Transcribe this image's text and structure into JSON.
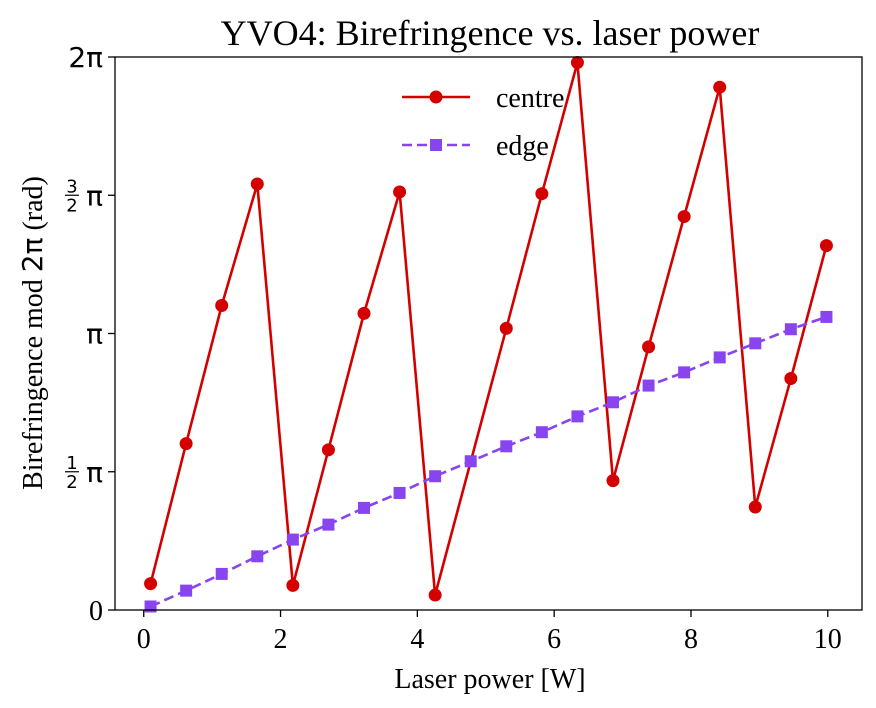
{
  "chart_data": {
    "type": "line",
    "title": "YVO4: Birefringence vs. laser power",
    "xlabel": "Laser power [W]",
    "ylabel_text": "Birefringence mod ",
    "ylabel_math": "2π",
    "ylabel_unit": " (rad)",
    "xlim": [
      -0.42,
      10.5
    ],
    "ylim": [
      0,
      6.2832
    ],
    "xticks": [
      0,
      2,
      4,
      6,
      8,
      10
    ],
    "xtick_labels": [
      "0",
      "2",
      "4",
      "6",
      "8",
      "10"
    ],
    "yticks": [
      {
        "value": 0,
        "label": "0"
      },
      {
        "value": 1.5708,
        "label": "π",
        "frac": "1/2"
      },
      {
        "value": 3.1416,
        "label": "π"
      },
      {
        "value": 4.7124,
        "label": "π",
        "frac": "3/2"
      },
      {
        "value": 6.2832,
        "label": "2π"
      }
    ],
    "legend_position": "top-center",
    "grid": false,
    "series": [
      {
        "name": "centre",
        "color": "#d40000",
        "linestyle": "solid",
        "marker": "circle",
        "x": [
          0.1,
          0.62,
          1.14,
          1.66,
          2.18,
          2.7,
          3.22,
          3.74,
          4.26,
          4.78,
          5.3,
          5.82,
          6.34,
          6.86,
          7.38,
          7.9,
          8.42,
          8.94,
          9.46,
          9.98
        ],
        "y": [
          0.3,
          1.89,
          3.46,
          4.84,
          0.28,
          1.82,
          3.37,
          4.75,
          0.17,
          null,
          3.2,
          4.73,
          6.22,
          1.47,
          2.99,
          4.47,
          5.94,
          1.17,
          2.63,
          4.14
        ]
      },
      {
        "name": "edge",
        "color": "#8844ee",
        "linestyle": "dashed",
        "marker": "square",
        "x": [
          0.1,
          0.62,
          1.14,
          1.66,
          2.18,
          2.7,
          3.22,
          3.74,
          4.26,
          4.78,
          5.3,
          5.82,
          6.34,
          6.86,
          7.38,
          7.9,
          8.42,
          8.94,
          9.46,
          9.98
        ],
        "y": [
          0.04,
          0.22,
          0.41,
          0.61,
          0.8,
          0.97,
          1.16,
          1.33,
          1.52,
          1.69,
          1.86,
          2.02,
          2.2,
          2.36,
          2.55,
          2.7,
          2.87,
          3.03,
          3.19,
          3.33
        ]
      }
    ]
  }
}
